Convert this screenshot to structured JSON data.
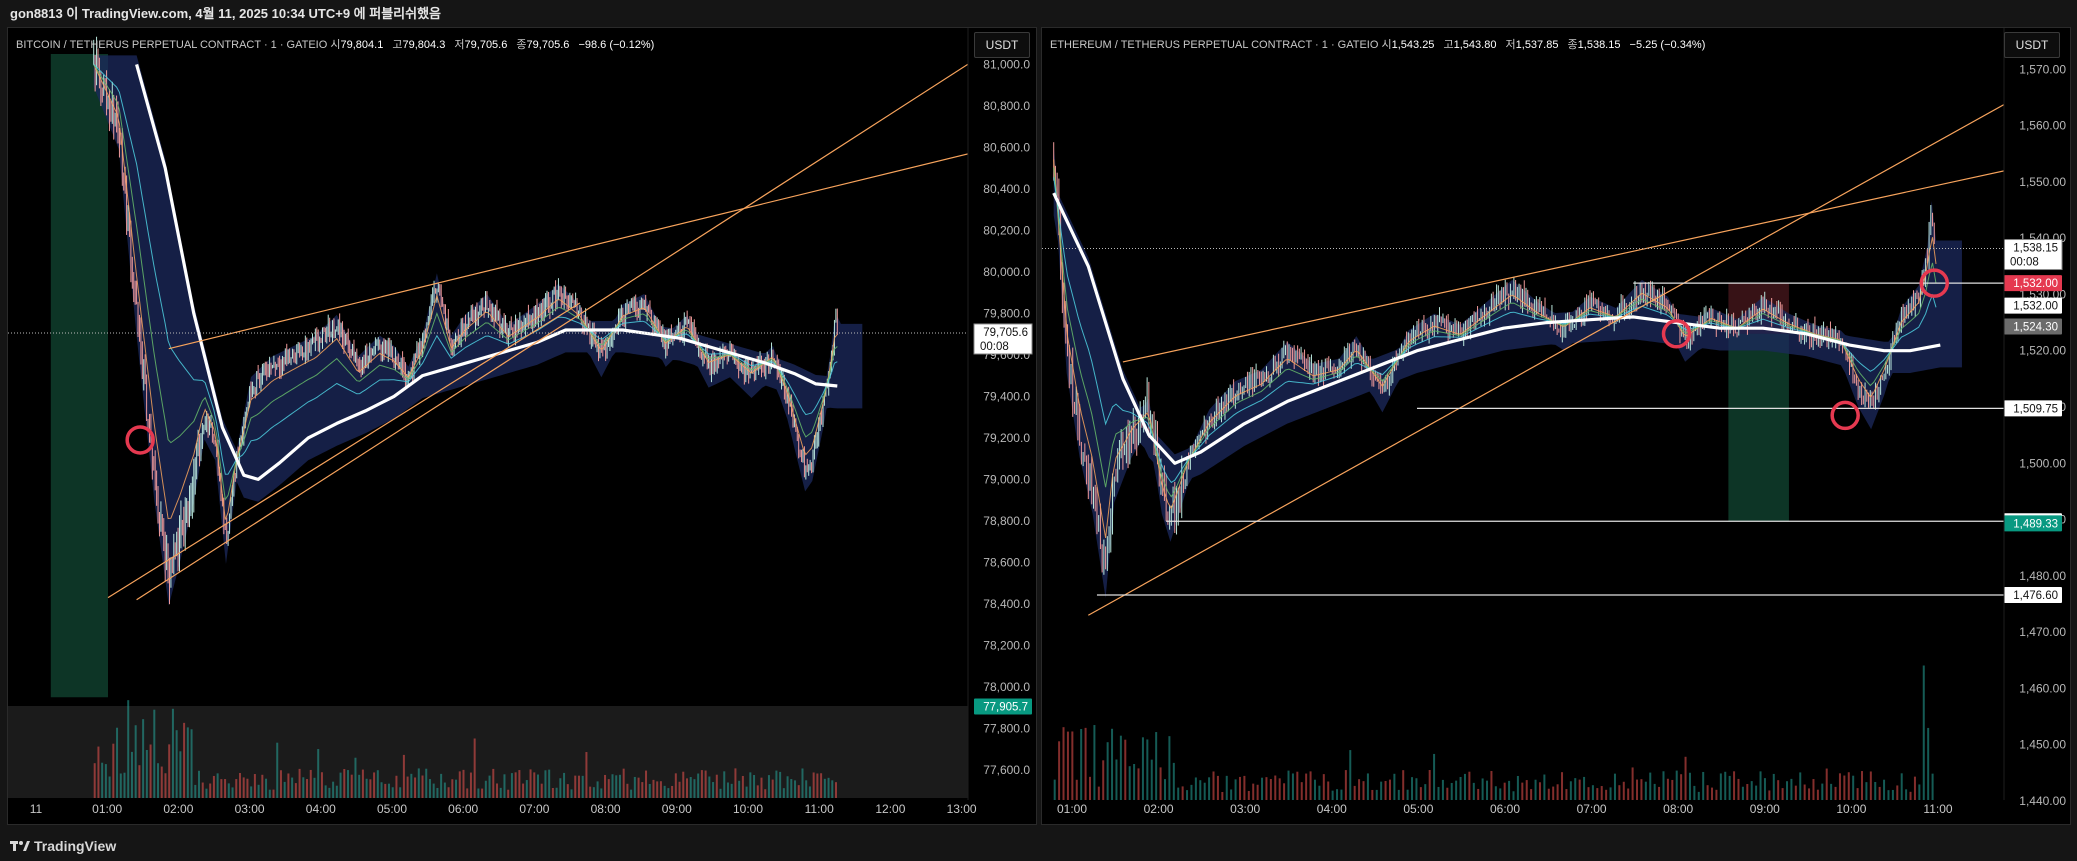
{
  "header": {
    "text": "gon8813 이 TradingView.com, 4월 11, 2025 10:34 UTC+9 에 퍼블리쉬했음"
  },
  "footer": {
    "brand": "TradingView"
  },
  "colors": {
    "up": "#26a69a",
    "down": "#ef5350",
    "trend": "#f7a35c",
    "ma": "#ffffff",
    "cloud": "#1c2a5e",
    "level": "#e0e0e0",
    "circle": "#e53950"
  },
  "chart_data": [
    {
      "type": "candlestick",
      "legend": {
        "title": "BITCOIN / TETHERUS PERPETUAL CONTRACT · 1 · GATEIO",
        "o_label": "시",
        "o": "79,804.1",
        "h_label": "고",
        "h": "79,804.3",
        "l_label": "저",
        "l": "79,705.6",
        "c_label": "종",
        "c": "79,705.6",
        "chg": "−98.6 (−0.12%)"
      },
      "unit": "USDT",
      "x_ticks": [
        "11",
        "01:00",
        "02:00",
        "03:00",
        "04:00",
        "05:00",
        "06:00",
        "07:00",
        "08:00",
        "09:00",
        "10:00",
        "11:00",
        "12:00",
        "13:00"
      ],
      "y_ticks": [
        "81,000.0",
        "80,800.0",
        "80,600.0",
        "80,400.0",
        "80,200.0",
        "80,000.0",
        "79,800.0",
        "79,600.0",
        "79,400.0",
        "79,200.0",
        "79,000.0",
        "78,800.0",
        "78,600.0",
        "78,400.0",
        "78,200.0",
        "78,000.0",
        "77,800.0",
        "77,600.0"
      ],
      "ylim": [
        77450,
        81050
      ],
      "price_tags": [
        {
          "value": 79705.6,
          "label": "79,705.6",
          "sub": "00:08",
          "style": "last"
        },
        {
          "value": 77905.7,
          "label": "77,905.7",
          "style": "green"
        }
      ],
      "price_path": [
        [
          -0.2,
          81000
        ],
        [
          0.15,
          80700
        ],
        [
          0.4,
          79800
        ],
        [
          0.65,
          79000
        ],
        [
          0.85,
          78500
        ],
        [
          1.0,
          78700
        ],
        [
          1.2,
          79000
        ],
        [
          1.35,
          79300
        ],
        [
          1.5,
          79200
        ],
        [
          1.65,
          78700
        ],
        [
          1.8,
          79100
        ],
        [
          2.0,
          79450
        ],
        [
          2.3,
          79550
        ],
        [
          2.6,
          79600
        ],
        [
          2.9,
          79650
        ],
        [
          3.2,
          79750
        ],
        [
          3.5,
          79550
        ],
        [
          3.8,
          79650
        ],
        [
          4.0,
          79600
        ],
        [
          4.2,
          79500
        ],
        [
          4.4,
          79650
        ],
        [
          4.6,
          79950
        ],
        [
          4.8,
          79650
        ],
        [
          5.0,
          79750
        ],
        [
          5.3,
          79850
        ],
        [
          5.6,
          79700
        ],
        [
          6.0,
          79800
        ],
        [
          6.3,
          79900
        ],
        [
          6.6,
          79800
        ],
        [
          6.9,
          79600
        ],
        [
          7.2,
          79800
        ],
        [
          7.5,
          79850
        ],
        [
          7.8,
          79650
        ],
        [
          8.1,
          79750
        ],
        [
          8.4,
          79550
        ],
        [
          8.7,
          79600
        ],
        [
          9.0,
          79500
        ],
        [
          9.3,
          79600
        ],
        [
          9.5,
          79400
        ],
        [
          9.75,
          79050
        ],
        [
          9.85,
          79100
        ],
        [
          10.0,
          79350
        ],
        [
          10.1,
          79550
        ],
        [
          10.18,
          79780
        ],
        [
          10.22,
          79706
        ]
      ],
      "ma_path": [
        [
          0.4,
          81000
        ],
        [
          0.8,
          80500
        ],
        [
          1.2,
          79800
        ],
        [
          1.6,
          79250
        ],
        [
          1.9,
          79020
        ],
        [
          2.1,
          79000
        ],
        [
          2.4,
          79080
        ],
        [
          2.8,
          79200
        ],
        [
          3.2,
          79270
        ],
        [
          3.6,
          79330
        ],
        [
          4.0,
          79400
        ],
        [
          4.4,
          79500
        ],
        [
          4.8,
          79540
        ],
        [
          5.2,
          79580
        ],
        [
          5.6,
          79620
        ],
        [
          6.0,
          79660
        ],
        [
          6.4,
          79720
        ],
        [
          6.8,
          79720
        ],
        [
          7.2,
          79720
        ],
        [
          7.6,
          79700
        ],
        [
          8.0,
          79680
        ],
        [
          8.4,
          79640
        ],
        [
          8.8,
          79600
        ],
        [
          9.2,
          79560
        ],
        [
          9.6,
          79510
        ],
        [
          9.9,
          79460
        ],
        [
          10.2,
          79450
        ]
      ],
      "trendlines": [
        {
          "from": [
            0.0,
            78430
          ],
          "to": [
            6.6,
            79850
          ]
        },
        {
          "from": [
            0.85,
            79630
          ],
          "to": [
            12.4,
            80600
          ]
        },
        {
          "from": [
            0.4,
            78420
          ],
          "to": [
            12.7,
            81150
          ]
        }
      ],
      "h_lines": [],
      "shaded": [
        {
          "x0": -0.8,
          "x1": 0.0,
          "y0": 77950,
          "y1": 81050,
          "color": "#0e3b2a"
        }
      ],
      "circles": [
        [
          0.45,
          79190
        ]
      ],
      "volume_count": 200
    },
    {
      "type": "candlestick",
      "legend": {
        "title": "ETHEREUM / TETHERUS PERPETUAL CONTRACT · 1 · GATEIO",
        "o_label": "시",
        "o": "1,543.25",
        "h_label": "고",
        "h": "1,543.80",
        "l_label": "저",
        "l": "1,537.85",
        "c_label": "종",
        "c": "1,538.15",
        "chg": "−5.25 (−0.34%)"
      },
      "unit": "USDT",
      "x_ticks": [
        "01:00",
        "02:00",
        "03:00",
        "04:00",
        "05:00",
        "06:00",
        "07:00",
        "08:00",
        "09:00",
        "10:00",
        "11:00"
      ],
      "y_ticks": [
        "1,570.00",
        "1,560.00",
        "1,550.00",
        "1,540.00",
        "1,530.00",
        "1,520.00",
        "1,510.00",
        "1,500.00",
        "1,490.00",
        "1,480.00",
        "1,470.00",
        "1,460.00",
        "1,450.00",
        "1,440.00"
      ],
      "ylim": [
        1440,
        1572
      ],
      "price_tags": [
        {
          "value": 1538.15,
          "label": "1,538.15",
          "sub": "00:08",
          "style": "last"
        },
        {
          "value": 1532.0,
          "label": "1,532.00",
          "style": "red"
        },
        {
          "value": 1528.0,
          "label": "1,532.00",
          "style": "white"
        },
        {
          "value": 1524.3,
          "label": "1,524.30",
          "style": "gray"
        },
        {
          "value": 1509.75,
          "label": "1,509.75",
          "style": "white"
        },
        {
          "value": 1489.7,
          "label": "1,489.70",
          "style": "white"
        },
        {
          "value": 1489.33,
          "label": "1,489.33",
          "style": "green"
        },
        {
          "value": 1476.6,
          "label": "1,476.60",
          "style": "white"
        }
      ],
      "price_path": [
        [
          -0.2,
          1555
        ],
        [
          -0.05,
          1520
        ],
        [
          0.1,
          1505
        ],
        [
          0.25,
          1495
        ],
        [
          0.4,
          1480
        ],
        [
          0.5,
          1497
        ],
        [
          0.7,
          1505
        ],
        [
          0.9,
          1510
        ],
        [
          1.05,
          1495
        ],
        [
          1.15,
          1490
        ],
        [
          1.35,
          1500
        ],
        [
          1.6,
          1508
        ],
        [
          1.9,
          1513
        ],
        [
          2.2,
          1515
        ],
        [
          2.5,
          1520
        ],
        [
          2.8,
          1516
        ],
        [
          3.1,
          1517
        ],
        [
          3.3,
          1521
        ],
        [
          3.6,
          1513
        ],
        [
          3.9,
          1522
        ],
        [
          4.2,
          1525
        ],
        [
          4.5,
          1523
        ],
        [
          4.8,
          1527
        ],
        [
          5.1,
          1531
        ],
        [
          5.4,
          1527
        ],
        [
          5.7,
          1524
        ],
        [
          6.0,
          1528
        ],
        [
          6.3,
          1526
        ],
        [
          6.6,
          1531
        ],
        [
          6.9,
          1528
        ],
        [
          7.1,
          1522
        ],
        [
          7.4,
          1526
        ],
        [
          7.7,
          1524
        ],
        [
          8.0,
          1528
        ],
        [
          8.3,
          1525
        ],
        [
          8.6,
          1523
        ],
        [
          8.9,
          1522
        ],
        [
          9.1,
          1514
        ],
        [
          9.25,
          1510
        ],
        [
          9.4,
          1516
        ],
        [
          9.6,
          1526
        ],
        [
          9.8,
          1530
        ],
        [
          9.9,
          1537
        ],
        [
          9.95,
          1545
        ],
        [
          10.0,
          1538
        ]
      ],
      "ma_path": [
        [
          -0.2,
          1548
        ],
        [
          0.2,
          1535
        ],
        [
          0.6,
          1515
        ],
        [
          0.9,
          1505
        ],
        [
          1.2,
          1500
        ],
        [
          1.5,
          1502
        ],
        [
          2.0,
          1507
        ],
        [
          2.5,
          1511
        ],
        [
          3.0,
          1514
        ],
        [
          3.5,
          1517
        ],
        [
          4.0,
          1520
        ],
        [
          4.5,
          1522
        ],
        [
          5.0,
          1524
        ],
        [
          5.5,
          1525
        ],
        [
          6.0,
          1525.5
        ],
        [
          6.5,
          1526
        ],
        [
          7.0,
          1525
        ],
        [
          7.5,
          1524
        ],
        [
          8.0,
          1524
        ],
        [
          8.5,
          1523
        ],
        [
          9.0,
          1521
        ],
        [
          9.4,
          1520
        ],
        [
          9.7,
          1520
        ],
        [
          10.05,
          1521
        ]
      ],
      "trendlines": [
        {
          "from": [
            0.6,
            1518
          ],
          "to": [
            11.4,
            1554
          ]
        },
        {
          "from": [
            0.2,
            1473
          ],
          "to": [
            11.4,
            1569
          ]
        }
      ],
      "h_lines": [
        {
          "value": 1532.0,
          "x0": 6.5
        },
        {
          "value": 1509.75,
          "x0": 4.0
        },
        {
          "value": 1489.7,
          "x0": 1.1
        },
        {
          "value": 1476.6,
          "x0": 0.3
        }
      ],
      "shaded": [
        {
          "x0": 7.6,
          "x1": 8.3,
          "y0": 1523,
          "y1": 1532,
          "color": "#3d1418"
        },
        {
          "x0": 7.6,
          "x1": 8.3,
          "y0": 1489.7,
          "y1": 1523,
          "color": "#0e3b2a"
        }
      ],
      "circles": [
        [
          7.0,
          1523
        ],
        [
          8.95,
          1508.5
        ],
        [
          9.98,
          1532
        ]
      ],
      "volume_count": 200
    }
  ]
}
